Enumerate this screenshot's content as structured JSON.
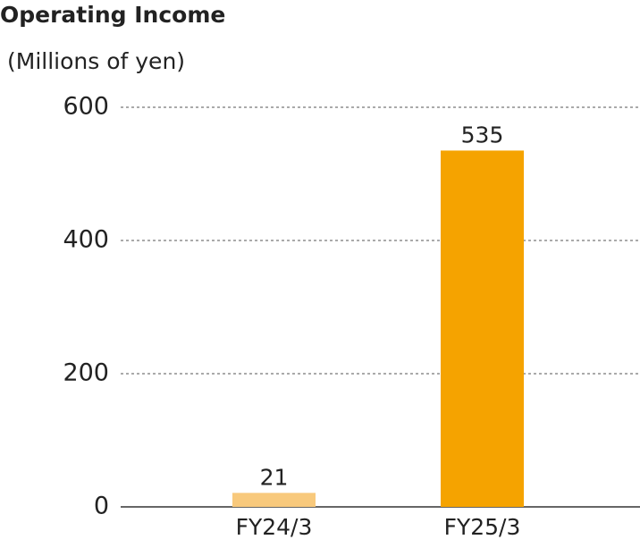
{
  "chart_data": {
    "type": "bar",
    "title": "Operating Income",
    "subtitle": "(Millions of yen)",
    "categories": [
      "FY24/3",
      "FY25/3"
    ],
    "values": [
      21,
      535
    ],
    "colors": [
      "#f8c97c",
      "#f5a300"
    ],
    "ylim": [
      0,
      600
    ],
    "yticks": [
      0,
      200,
      400,
      600
    ],
    "grid": true
  }
}
